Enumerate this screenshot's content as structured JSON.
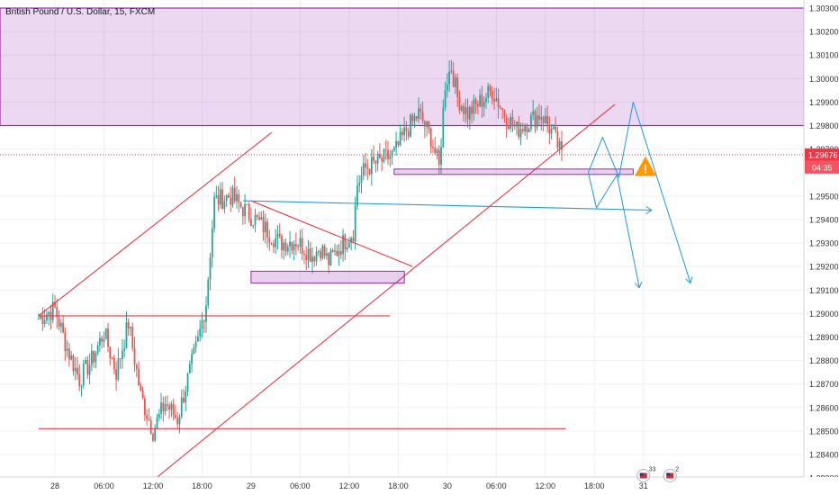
{
  "chart_data": {
    "type": "candlestick",
    "title": "British Pound / U.S. Dollar, 15, FXCM",
    "ylim": [
      1.2824,
      1.3035
    ],
    "y_ticks": [
      "1.30300",
      "1.30200",
      "1.30100",
      "1.30000",
      "1.29900",
      "1.29800",
      "1.29700",
      "1.29500",
      "1.29400",
      "1.29300",
      "1.29200",
      "1.29100",
      "1.29000",
      "1.28900",
      "1.28800",
      "1.28700",
      "1.28600",
      "1.28500",
      "1.28400",
      "1.28300"
    ],
    "x_ticks": [
      {
        "label": "28",
        "bar": 0
      },
      {
        "label": "06:00",
        "bar": 24
      },
      {
        "label": "12:00",
        "bar": 48
      },
      {
        "label": "18:00",
        "bar": 72
      },
      {
        "label": "29",
        "bar": 96
      },
      {
        "label": "06:00",
        "bar": 120
      },
      {
        "label": "12:00",
        "bar": 144
      },
      {
        "label": "18:00",
        "bar": 168
      },
      {
        "label": "30",
        "bar": 192
      },
      {
        "label": "06:00",
        "bar": 216
      },
      {
        "label": "12:00",
        "bar": 240
      },
      {
        "label": "18:00",
        "bar": 264
      },
      {
        "label": "31",
        "bar": 288
      }
    ],
    "price_label": {
      "value": "1.29676",
      "color": "#f23645"
    },
    "countdown_label": "04:35",
    "resistance_zone": {
      "from": 1.298,
      "to": 1.303,
      "color": "#9c27b0"
    },
    "current_price": 1.29676,
    "waypoints": [
      [
        -8,
        1.2898
      ],
      [
        0,
        1.2902
      ],
      [
        6,
        1.2885
      ],
      [
        12,
        1.2872
      ],
      [
        18,
        1.288
      ],
      [
        24,
        1.2892
      ],
      [
        30,
        1.2875
      ],
      [
        36,
        1.2896
      ],
      [
        42,
        1.2865
      ],
      [
        48,
        1.285
      ],
      [
        54,
        1.2862
      ],
      [
        60,
        1.2855
      ],
      [
        64,
        1.2869
      ],
      [
        70,
        1.2888
      ],
      [
        74,
        1.2905
      ],
      [
        78,
        1.2948
      ],
      [
        86,
        1.295
      ],
      [
        94,
        1.2943
      ],
      [
        102,
        1.2937
      ],
      [
        110,
        1.293
      ],
      [
        118,
        1.2931
      ],
      [
        126,
        1.2925
      ],
      [
        130,
        1.2928
      ],
      [
        134,
        1.2922
      ],
      [
        140,
        1.2929
      ],
      [
        146,
        1.2935
      ],
      [
        148,
        1.2955
      ],
      [
        152,
        1.2962
      ],
      [
        160,
        1.2965
      ],
      [
        166,
        1.2968
      ],
      [
        172,
        1.2978
      ],
      [
        178,
        1.2985
      ],
      [
        184,
        1.2975
      ],
      [
        188,
        1.2962
      ],
      [
        191,
        1.2998
      ],
      [
        194,
        1.3005
      ],
      [
        197,
        1.2992
      ],
      [
        202,
        1.2985
      ],
      [
        208,
        1.299
      ],
      [
        214,
        1.2995
      ],
      [
        220,
        1.2985
      ],
      [
        226,
        1.2978
      ],
      [
        232,
        1.2982
      ],
      [
        238,
        1.2985
      ],
      [
        244,
        1.2976
      ],
      [
        248,
        1.2967
      ]
    ],
    "lines": [
      {
        "color": "#f23645",
        "points": [
          [
            -8,
            1.2899
          ],
          [
            106,
            1.2977
          ]
        ]
      },
      {
        "color": "#f23645",
        "points": [
          [
            -8,
            1.2899
          ],
          [
            164,
            1.2899
          ]
        ]
      },
      {
        "color": "#f23645",
        "points": [
          [
            -8,
            1.2851
          ],
          [
            250,
            1.2851
          ]
        ]
      },
      {
        "color": "#f23645",
        "points": [
          [
            34,
            1.2819
          ],
          [
            274,
            1.2989
          ]
        ]
      },
      {
        "color": "#f23645",
        "points": [
          [
            96,
            1.2948
          ],
          [
            175,
            1.292
          ]
        ]
      },
      {
        "color": "#2196f3",
        "points": [
          [
            92,
            1.2948
          ],
          [
            292,
            1.2944
          ]
        ]
      }
    ],
    "boxes": [
      {
        "from_bar": 96,
        "to_bar": 171,
        "low": 1.2913,
        "high": 1.2918,
        "color": "#9c27b0"
      },
      {
        "from_bar": 166,
        "to_bar": 283,
        "low": 1.29595,
        "high": 1.29615,
        "color": "#9c27b0"
      }
    ],
    "projections": [
      {
        "color": "#2196f3",
        "points": [
          [
            261,
            1.296
          ],
          [
            268,
            1.2975
          ],
          [
            276,
            1.2958
          ],
          [
            283,
            1.299
          ],
          [
            311,
            1.2913
          ]
        ]
      },
      {
        "color": "#2196f3",
        "points": [
          [
            261,
            1.296
          ],
          [
            265,
            1.2945
          ],
          [
            275,
            1.2959
          ],
          [
            286,
            1.2911
          ]
        ]
      }
    ],
    "warning_icon": {
      "bar": 289,
      "price": 1.2962,
      "symbol": "!",
      "color": "#ff9800"
    },
    "event_badges": [
      {
        "bar": 288,
        "price": 1.2831,
        "count": "33"
      },
      {
        "bar": 301,
        "price": 1.2831,
        "count": "2"
      }
    ],
    "colors": {
      "up": "#26a69a",
      "down": "#ef5350",
      "grid": "#eef0f3",
      "axis_text": "#333333",
      "background": "#ffffff"
    }
  }
}
